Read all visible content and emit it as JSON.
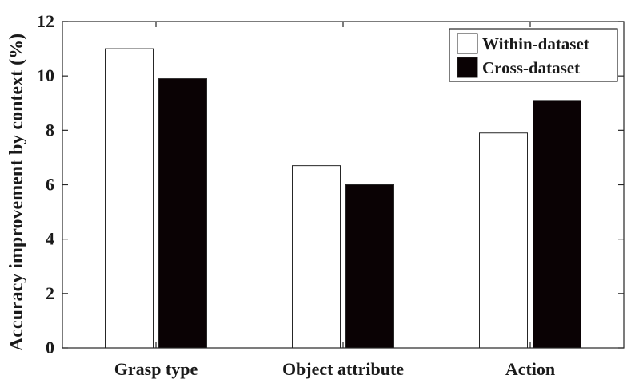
{
  "chart_data": {
    "type": "bar",
    "categories": [
      "Grasp type",
      "Object attribute",
      "Action"
    ],
    "series": [
      {
        "name": "Within-dataset",
        "values": [
          11.0,
          6.7,
          7.9
        ],
        "fill": "#ffffff"
      },
      {
        "name": "Cross-dataset",
        "values": [
          9.9,
          6.0,
          9.1
        ],
        "fill": "#0a0204"
      }
    ],
    "ylabel": "Accuracy improvement by context (%)",
    "xlabel": "",
    "ylim": [
      0,
      12
    ],
    "yticks": [
      0,
      2,
      4,
      6,
      8,
      10,
      12
    ],
    "grid": false,
    "legend_position": "top-right"
  }
}
